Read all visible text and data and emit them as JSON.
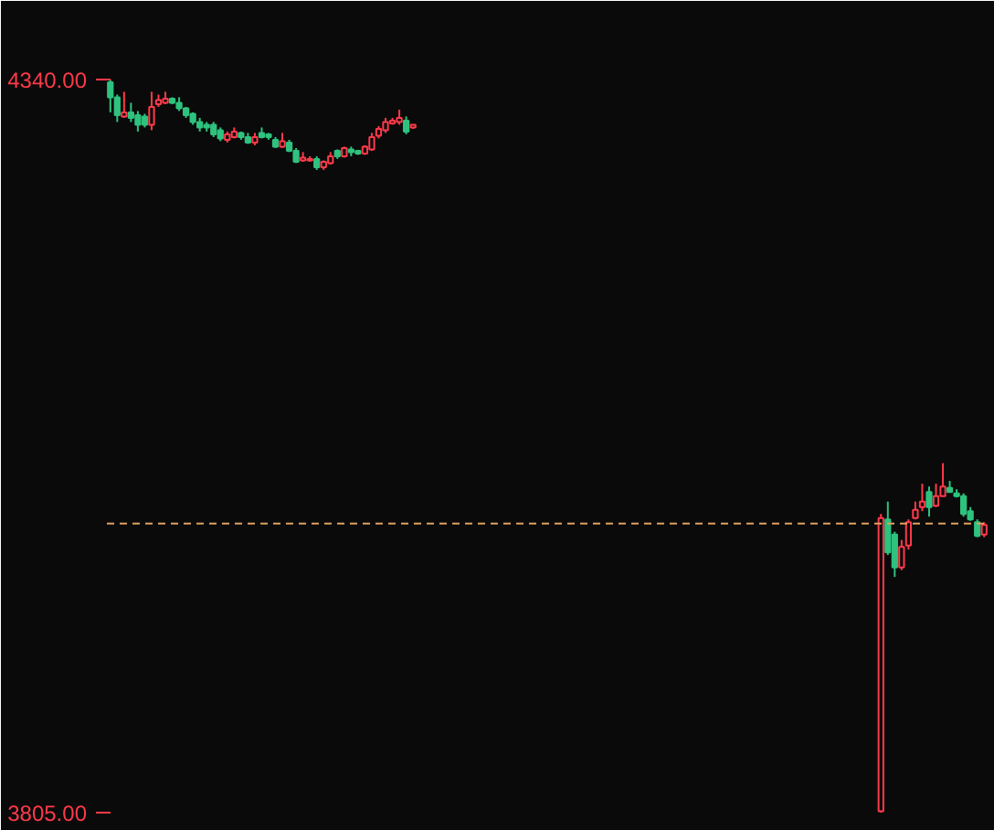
{
  "chart_data": {
    "type": "candlestick",
    "categories": [
      null,
      null,
      null,
      null,
      null,
      null,
      null,
      null,
      null,
      null,
      null,
      null,
      null,
      null,
      null,
      null,
      null,
      null,
      null,
      null,
      null,
      null,
      null,
      null,
      null,
      null,
      null,
      null,
      null,
      null,
      null,
      null,
      null,
      null,
      null,
      null,
      null,
      null,
      null,
      null,
      null,
      null,
      null,
      null,
      null,
      null,
      null,
      null,
      null,
      null,
      null,
      null,
      null,
      null,
      null,
      null,
      null,
      null,
      null,
      null,
      null,
      null,
      null,
      null,
      null,
      null,
      null,
      null,
      null,
      null,
      null,
      null,
      null,
      null,
      null,
      null,
      null,
      null,
      null,
      null,
      null,
      null,
      null,
      null,
      null,
      null,
      null,
      null,
      null,
      null,
      null,
      null,
      null,
      null,
      null,
      null,
      null,
      null,
      null,
      null,
      null,
      null,
      null,
      null,
      null,
      null,
      null,
      null,
      null,
      null,
      null,
      null,
      null,
      null,
      null,
      null,
      null,
      null,
      null,
      null,
      null,
      null,
      null,
      null,
      null,
      null,
      null,
      null
    ],
    "ohlc": [
      [
        4338,
        4340,
        4316,
        4327
      ],
      [
        4327,
        4329,
        4309,
        4314
      ],
      [
        4313,
        4331,
        4312,
        4316
      ],
      [
        4316,
        4323,
        4309,
        4312
      ],
      [
        4314,
        4317,
        4302,
        4307
      ],
      [
        4313,
        4315,
        4305,
        4307
      ],
      [
        4307,
        4331,
        4303,
        4320
      ],
      [
        4322,
        4329,
        4320,
        4325
      ],
      [
        4323,
        4331,
        4322,
        4326
      ],
      [
        4326,
        4327,
        4322,
        4323
      ],
      [
        4323,
        4327,
        4317,
        4319
      ],
      [
        4319,
        4320,
        4312,
        4314
      ],
      [
        4315,
        4316,
        4307,
        4309
      ],
      [
        4309,
        4312,
        4302,
        4305
      ],
      [
        4307,
        4309,
        4302,
        4305
      ],
      [
        4307,
        4309,
        4298,
        4300
      ],
      [
        4303,
        4305,
        4295,
        4297
      ],
      [
        4296,
        4302,
        4294,
        4300
      ],
      [
        4298,
        4305,
        4297,
        4302
      ],
      [
        4301,
        4302,
        4296,
        4298
      ],
      [
        4298,
        4301,
        4293,
        4294
      ],
      [
        4294,
        4301,
        4292,
        4298
      ],
      [
        4301,
        4305,
        4297,
        4298
      ],
      [
        4300,
        4301,
        4296,
        4298
      ],
      [
        4296,
        4298,
        4290,
        4291
      ],
      [
        4291,
        4301,
        4290,
        4295
      ],
      [
        4294,
        4296,
        4287,
        4288
      ],
      [
        4288,
        4290,
        4279,
        4280
      ],
      [
        4281,
        4287,
        4280,
        4283
      ],
      [
        4281,
        4284,
        4280,
        4282
      ],
      [
        4282,
        4284,
        4274,
        4276
      ],
      [
        4276,
        4281,
        4274,
        4280
      ],
      [
        4279,
        4287,
        4278,
        4284
      ],
      [
        4288,
        4289,
        4282,
        4284
      ],
      [
        4284,
        4291,
        4283,
        4290
      ],
      [
        4289,
        4291,
        4284,
        4287
      ],
      [
        4288,
        4288,
        4285,
        4286
      ],
      [
        4286,
        4292,
        4285,
        4291
      ],
      [
        4289,
        4301,
        4288,
        4298
      ],
      [
        4299,
        4306,
        4297,
        4304
      ],
      [
        4303,
        4312,
        4301,
        4309
      ],
      [
        4308,
        4312,
        4307,
        4310
      ],
      [
        4309,
        4318,
        4307,
        4312
      ],
      [
        4310,
        4313,
        4300,
        4302
      ],
      [
        4305,
        4307,
        4304,
        4307
      ],
      null,
      null,
      null,
      null,
      null,
      null,
      null,
      null,
      null,
      null,
      null,
      null,
      null,
      null,
      null,
      null,
      null,
      null,
      null,
      null,
      null,
      null,
      null,
      null,
      null,
      null,
      null,
      null,
      null,
      null,
      null,
      null,
      null,
      null,
      null,
      null,
      null,
      null,
      null,
      null,
      null,
      null,
      null,
      null,
      null,
      null,
      null,
      null,
      null,
      null,
      null,
      null,
      null,
      null,
      null,
      null,
      null,
      null,
      null,
      null,
      null,
      null,
      null,
      null,
      null,
      null,
      null,
      [
        3806,
        4023,
        3805,
        4020
      ],
      [
        4019,
        4032,
        3993,
        3995
      ],
      [
        4008,
        4010,
        3977,
        3984
      ],
      [
        3984,
        4004,
        3982,
        3999
      ],
      [
        4000,
        4019,
        3997,
        4017
      ],
      [
        4020,
        4032,
        4019,
        4026
      ],
      [
        4028,
        4045,
        4025,
        4032
      ],
      [
        4039,
        4043,
        4021,
        4028
      ],
      [
        4029,
        4045,
        4028,
        4036
      ],
      [
        4036,
        4060,
        4036,
        4043
      ],
      [
        4042,
        4047,
        4039,
        4039
      ],
      [
        4038,
        4041,
        4035,
        4036
      ],
      [
        4036,
        4038,
        4021,
        4023
      ],
      [
        4025,
        4028,
        4018,
        4019
      ],
      [
        4017,
        4019,
        4006,
        4007
      ],
      [
        4008,
        4017,
        4006,
        4015
      ]
    ],
    "ylim": [
      3797,
      4392
    ],
    "yticks": [
      {
        "value": 4340,
        "label": "4340.00"
      },
      {
        "value": 3805,
        "label": "3805.00"
      }
    ],
    "ref_lines": [
      {
        "axis": "y",
        "value": 4016,
        "color": "#e0a060",
        "line_style": "dashed"
      }
    ],
    "grid": false
  }
}
